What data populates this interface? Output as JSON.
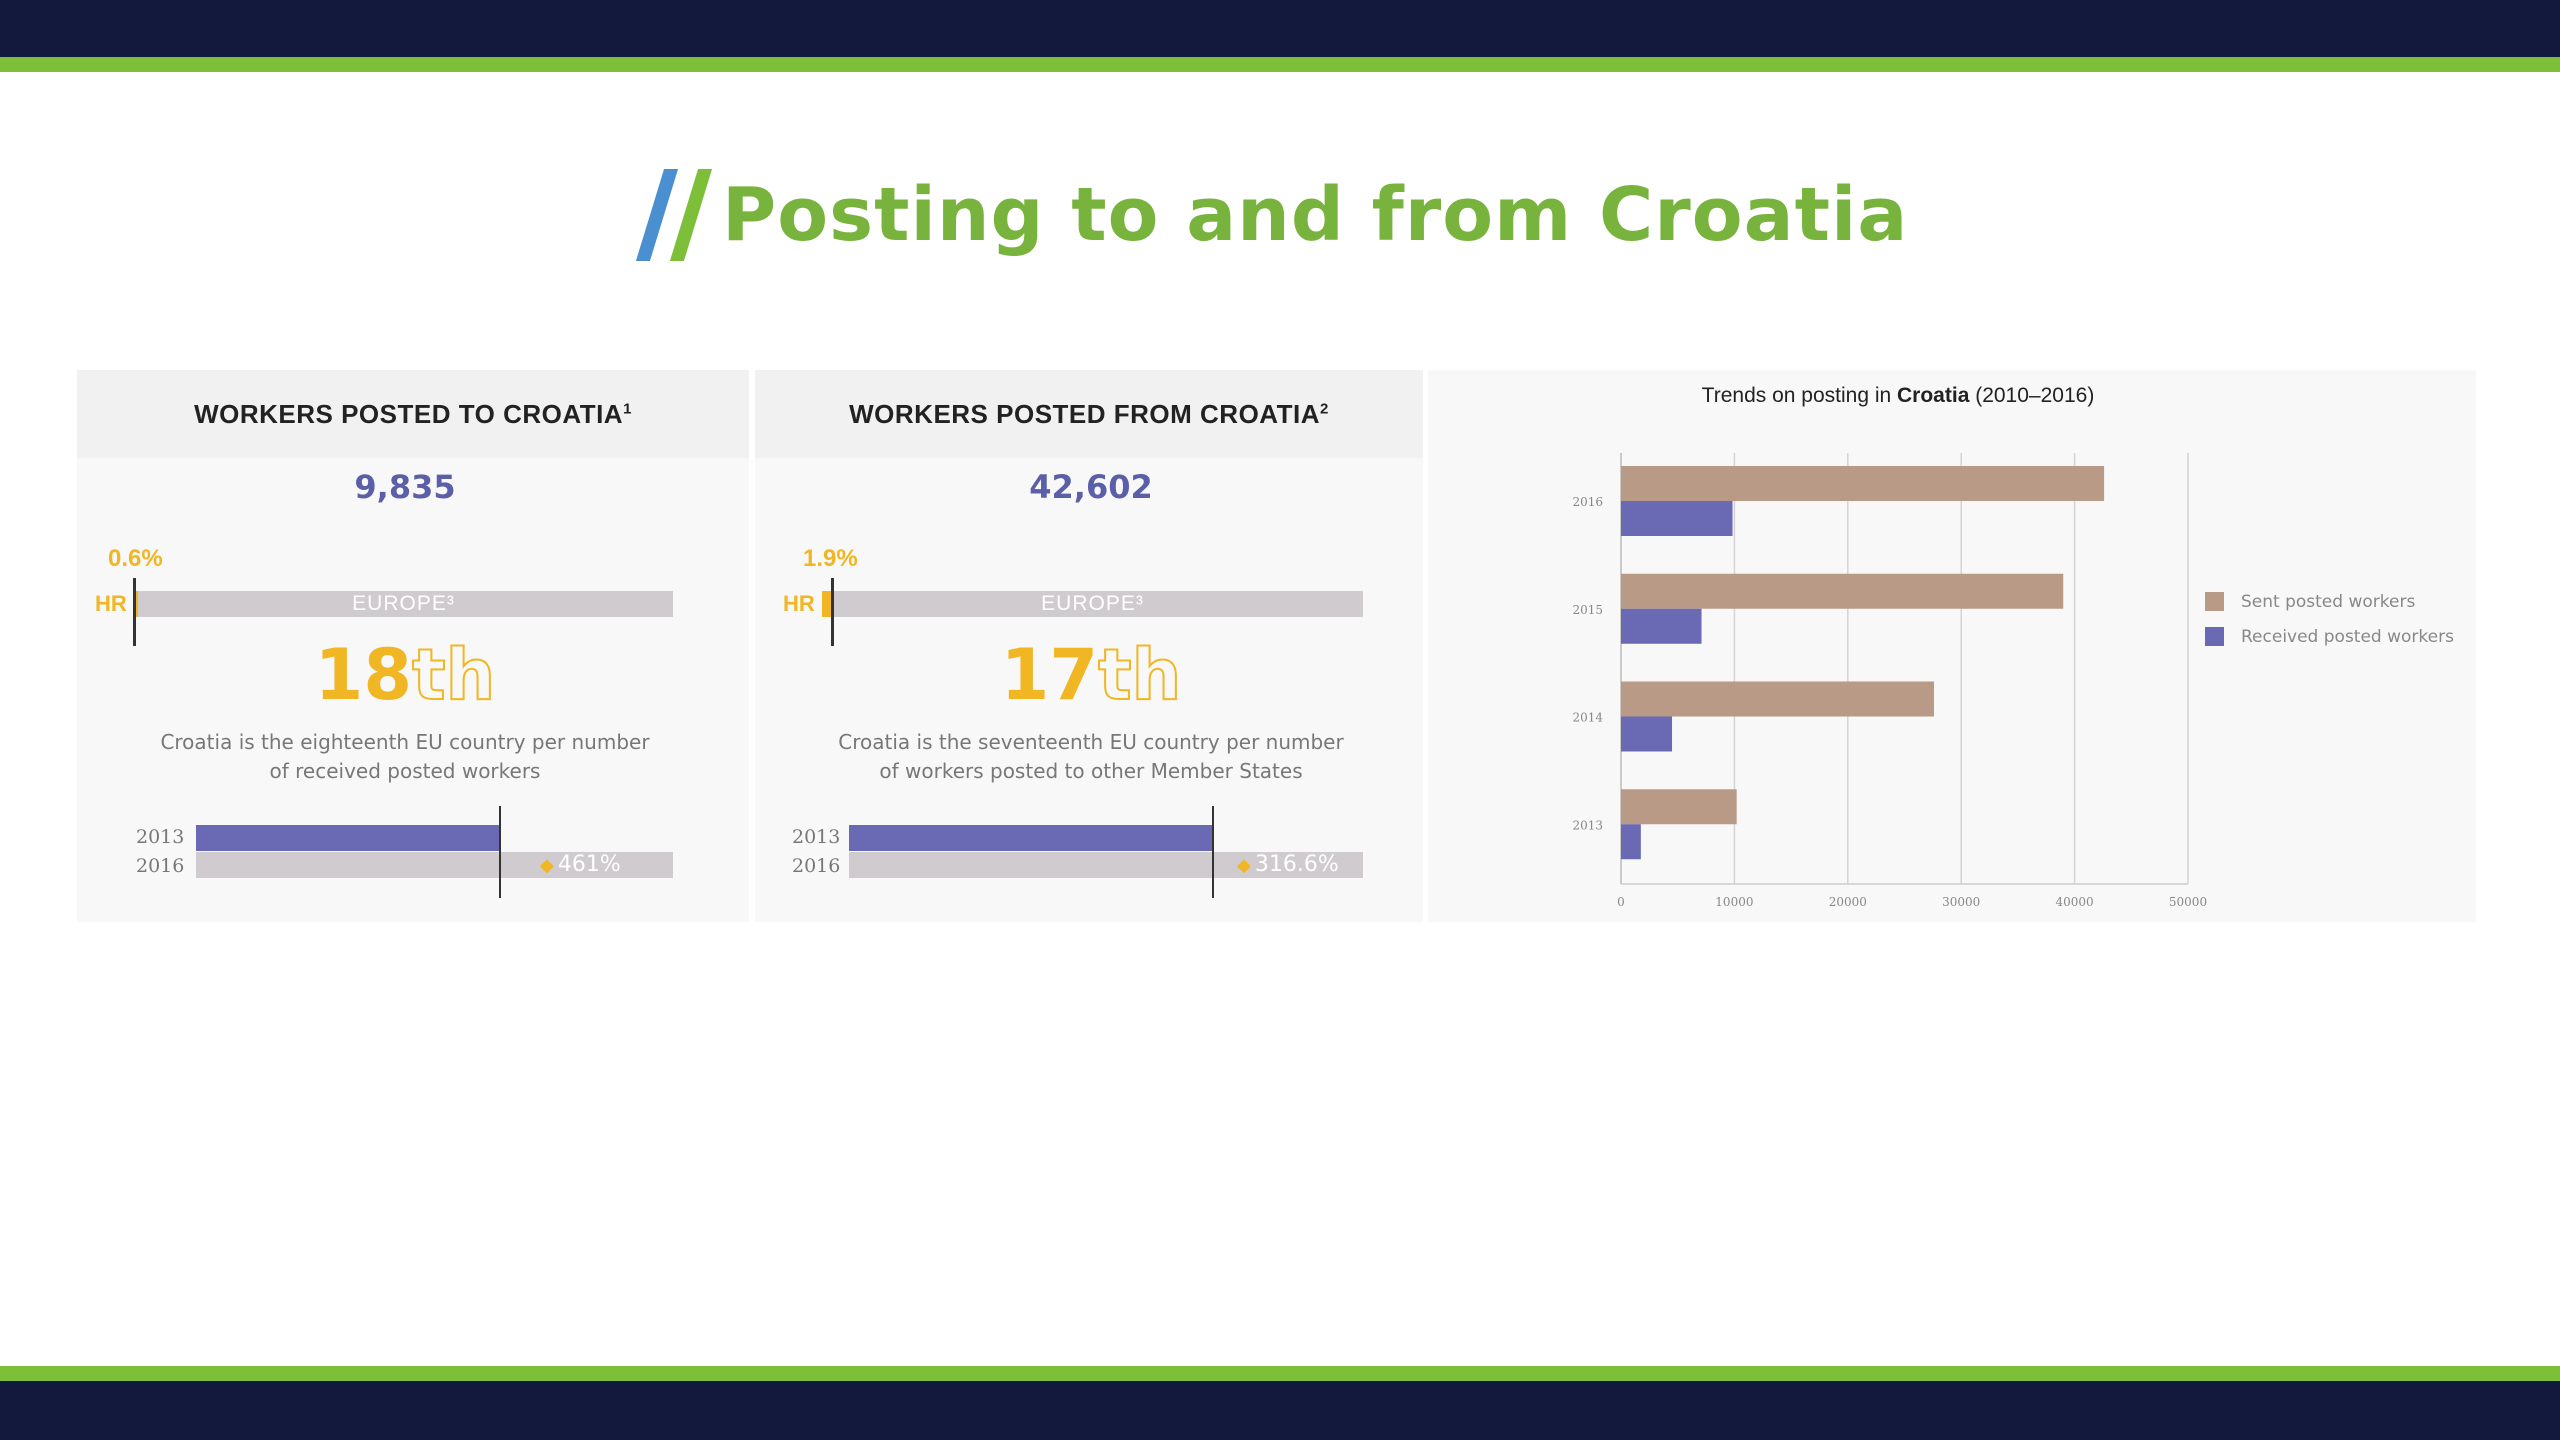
{
  "slide": {
    "title": "Posting to and from Croatia",
    "colors": {
      "navy": "#13193d",
      "green": "#7ebf3a",
      "blue_slash": "#4a8fd0",
      "title_green": "#78b43d",
      "accent_yellow": "#f0b623",
      "purple": "#5b5fa8"
    }
  },
  "panel_to": {
    "title": "WORKERS POSTED TO CROATIA",
    "footnote": "1",
    "value": "9,835",
    "share_pct": "0.6%",
    "share_value": 0.6,
    "hr_label": "HR",
    "europe_label": "EUROPE³",
    "rank_num": "18",
    "rank_suffix": "th",
    "desc_line1": "Croatia is the eighteenth EU country per number",
    "desc_line2": "of received posted workers",
    "year_a": "2013",
    "year_b": "2016",
    "growth": "461%",
    "growth_icon": "up-arrow-icon"
  },
  "panel_from": {
    "title": "WORKERS POSTED FROM CROATIA",
    "footnote": "2",
    "value": "42,602",
    "share_pct": "1.9%",
    "share_value": 1.9,
    "hr_label": "HR",
    "europe_label": "EUROPE³",
    "rank_num": "17",
    "rank_suffix": "th",
    "desc_line1": "Croatia is the seventeenth EU country per number",
    "desc_line2": "of workers posted to other Member States",
    "year_a": "2013",
    "year_b": "2016",
    "growth": "316.6%",
    "growth_icon": "up-arrow-icon"
  },
  "chart_data": {
    "type": "bar",
    "orientation": "horizontal",
    "title_prefix": "Trends on posting in ",
    "title_bold": "Croatia",
    "title_suffix": " (2010–2016)",
    "categories": [
      "2016",
      "2015",
      "2014",
      "2013"
    ],
    "series": [
      {
        "name": "Sent posted workers",
        "color": "#b89a86",
        "values": [
          42602,
          39000,
          27600,
          10200
        ]
      },
      {
        "name": "Received posted workers",
        "color": "#6a6ab4",
        "values": [
          9835,
          7100,
          4500,
          1750
        ]
      }
    ],
    "xlim": [
      0,
      50000
    ],
    "xticks": [
      "0",
      "10000",
      "20000",
      "30000",
      "40000",
      "50000"
    ],
    "grid": true,
    "legend": "right"
  }
}
